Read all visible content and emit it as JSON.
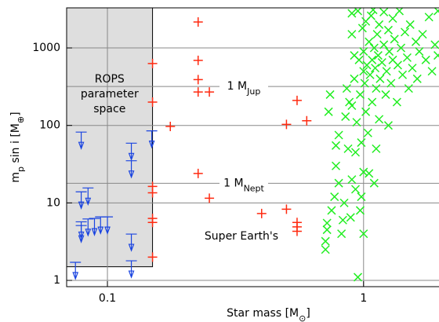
{
  "chart_data": {
    "type": "scatter",
    "log_x": true,
    "log_y": true,
    "grid": true,
    "xlim": [
      0.0693,
      1.97
    ],
    "ylim": [
      0.83,
      3290
    ],
    "xticks": [
      0.1,
      1
    ],
    "yticks": [
      1,
      10,
      100,
      1000
    ],
    "xlabel": [
      {
        "text": "Star mass [M"
      },
      {
        "text": "⊙",
        "sub": true
      },
      {
        "text": "]"
      }
    ],
    "ylabel": [
      {
        "text": "m"
      },
      {
        "text": "p",
        "sub": true
      },
      {
        "text": " sin i [M"
      },
      {
        "text": "⊕",
        "sub": true
      },
      {
        "text": "]"
      }
    ],
    "shaded_region": {
      "xlim": [
        0.0693,
        0.15
      ],
      "ylim": [
        1.5,
        3290
      ],
      "color": "#dedede",
      "label": [
        "ROPS",
        "parameter",
        "space"
      ]
    },
    "reference_lines": [
      {
        "value": 318,
        "label": [
          {
            "text": "1 M"
          },
          {
            "text": "Jup",
            "sub": true
          }
        ]
      },
      {
        "value": 17.9,
        "label": [
          {
            "text": "1 M"
          },
          {
            "text": "Nept",
            "sub": true
          }
        ]
      }
    ],
    "annotation": "Super Earth's",
    "series": [
      {
        "marker": "plus",
        "color": "#ff2a10",
        "x": [
          0.15,
          0.15,
          0.15,
          0.15,
          0.15,
          0.15,
          0.15,
          0.176,
          0.226,
          0.226,
          0.226,
          0.226,
          0.25,
          0.226,
          0.25,
          0.4,
          0.5,
          0.5,
          0.55,
          0.55,
          0.55,
          0.55,
          0.6
        ],
        "values": [
          630,
          200,
          16.3,
          13.5,
          6.3,
          5.6,
          2.0,
          97,
          2160,
          690,
          390,
          270,
          270,
          24,
          11.5,
          7.3,
          8.3,
          103,
          210,
          5.6,
          4.9,
          4.3,
          115
        ]
      },
      {
        "marker": "upper-limit",
        "color": "#1a44e0",
        "x": [
          0.079,
          0.079,
          0.084,
          0.079,
          0.079,
          0.084,
          0.089,
          0.094,
          0.1,
          0.075,
          0.124,
          0.124,
          0.124,
          0.124,
          0.149
        ],
        "values": [
          82,
          13.9,
          15.6,
          5.7,
          5.1,
          6.2,
          6.3,
          6.6,
          6.6,
          1.71,
          59,
          35,
          3.96,
          1.79,
          85
        ]
      },
      {
        "marker": "x",
        "color": "#22ee22",
        "x": [
          0.71,
          0.71,
          0.72,
          0.72,
          0.73,
          0.74,
          0.75,
          0.77,
          0.78,
          0.78,
          0.8,
          0.8,
          0.82,
          0.83,
          0.84,
          0.85,
          0.86,
          0.87,
          0.88,
          0.89,
          0.9,
          0.9,
          0.9,
          0.92,
          0.92,
          0.93,
          0.94,
          0.95,
          0.95,
          0.96,
          0.97,
          0.98,
          0.98,
          0.99,
          1.0,
          1.0,
          1.0,
          1.01,
          1.02,
          1.02,
          1.03,
          1.04,
          1.05,
          1.05,
          1.06,
          1.07,
          1.08,
          1.08,
          1.09,
          1.1,
          1.1,
          1.11,
          1.12,
          1.13,
          1.14,
          1.15,
          1.15,
          1.16,
          1.18,
          1.2,
          1.2,
          1.22,
          1.23,
          1.25,
          1.26,
          1.28,
          1.3,
          1.3,
          1.32,
          1.35,
          1.36,
          1.38,
          1.4,
          1.42,
          1.45,
          1.48,
          1.5,
          1.52,
          1.55,
          1.6,
          1.62,
          1.65,
          1.7,
          1.75,
          1.8,
          1.85,
          1.9,
          1.95,
          1.95,
          0.97,
          1.0,
          0.93,
          1.12,
          1.25,
          0.9
        ],
        "values": [
          2.5,
          3.2,
          4.5,
          5.5,
          150,
          250,
          8,
          12,
          30,
          55,
          75,
          18,
          4,
          6,
          10,
          130,
          300,
          50,
          200,
          6.5,
          2800,
          1500,
          20,
          800,
          400,
          45,
          110,
          1.1,
          3000,
          700,
          250,
          12,
          60,
          1800,
          500,
          900,
          25,
          350,
          2200,
          150,
          600,
          80,
          1200,
          24,
          450,
          2600,
          700,
          200,
          3100,
          1000,
          18,
          550,
          300,
          1500,
          800,
          2000,
          120,
          400,
          650,
          2900,
          1100,
          250,
          500,
          1700,
          900,
          350,
          2400,
          700,
          1300,
          200,
          600,
          3000,
          1000,
          450,
          1600,
          750,
          300,
          2000,
          550,
          1200,
          400,
          900,
          1500,
          700,
          2500,
          500,
          1100,
          800,
          3000,
          8,
          4,
          15,
          50,
          100,
          180
        ]
      }
    ]
  }
}
